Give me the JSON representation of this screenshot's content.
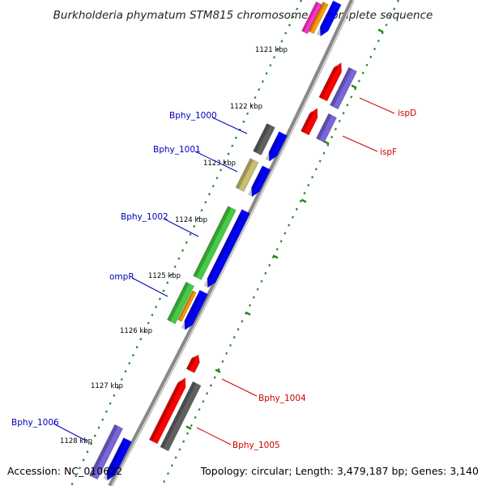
{
  "title": "Burkholderia phymatum STM815 chromosome 1, complete sequence",
  "footer": {
    "accession": "Accession: NC_010622",
    "summary": "Topology: circular; Length: 3,479,187 bp; Genes: 3,140"
  },
  "kbp_labels": [
    "1121 kbp",
    "1122 kbp",
    "1123 kbp",
    "1124 kbp",
    "1125 kbp",
    "1126 kbp",
    "1127 kbp",
    "1128 kbp"
  ],
  "gene_labels": {
    "left": [
      "Bphy_1000",
      "Bphy_1001",
      "Bphy_1002",
      "ompR",
      "Bphy_1006"
    ],
    "right": [
      "ispD",
      "ispF",
      "Bphy_1004",
      "Bphy_1005"
    ]
  },
  "colors": {
    "red": "#ff0000",
    "blue": "#0000ff",
    "gray": "#606060",
    "green": "#44cc44",
    "khaki": "#c8c070",
    "orange": "#ff9900",
    "purple": "#7766dd",
    "magenta": "#ff33cc",
    "dots": "#228822",
    "blue_label": "#0000bb",
    "red_label": "#cc0000"
  }
}
